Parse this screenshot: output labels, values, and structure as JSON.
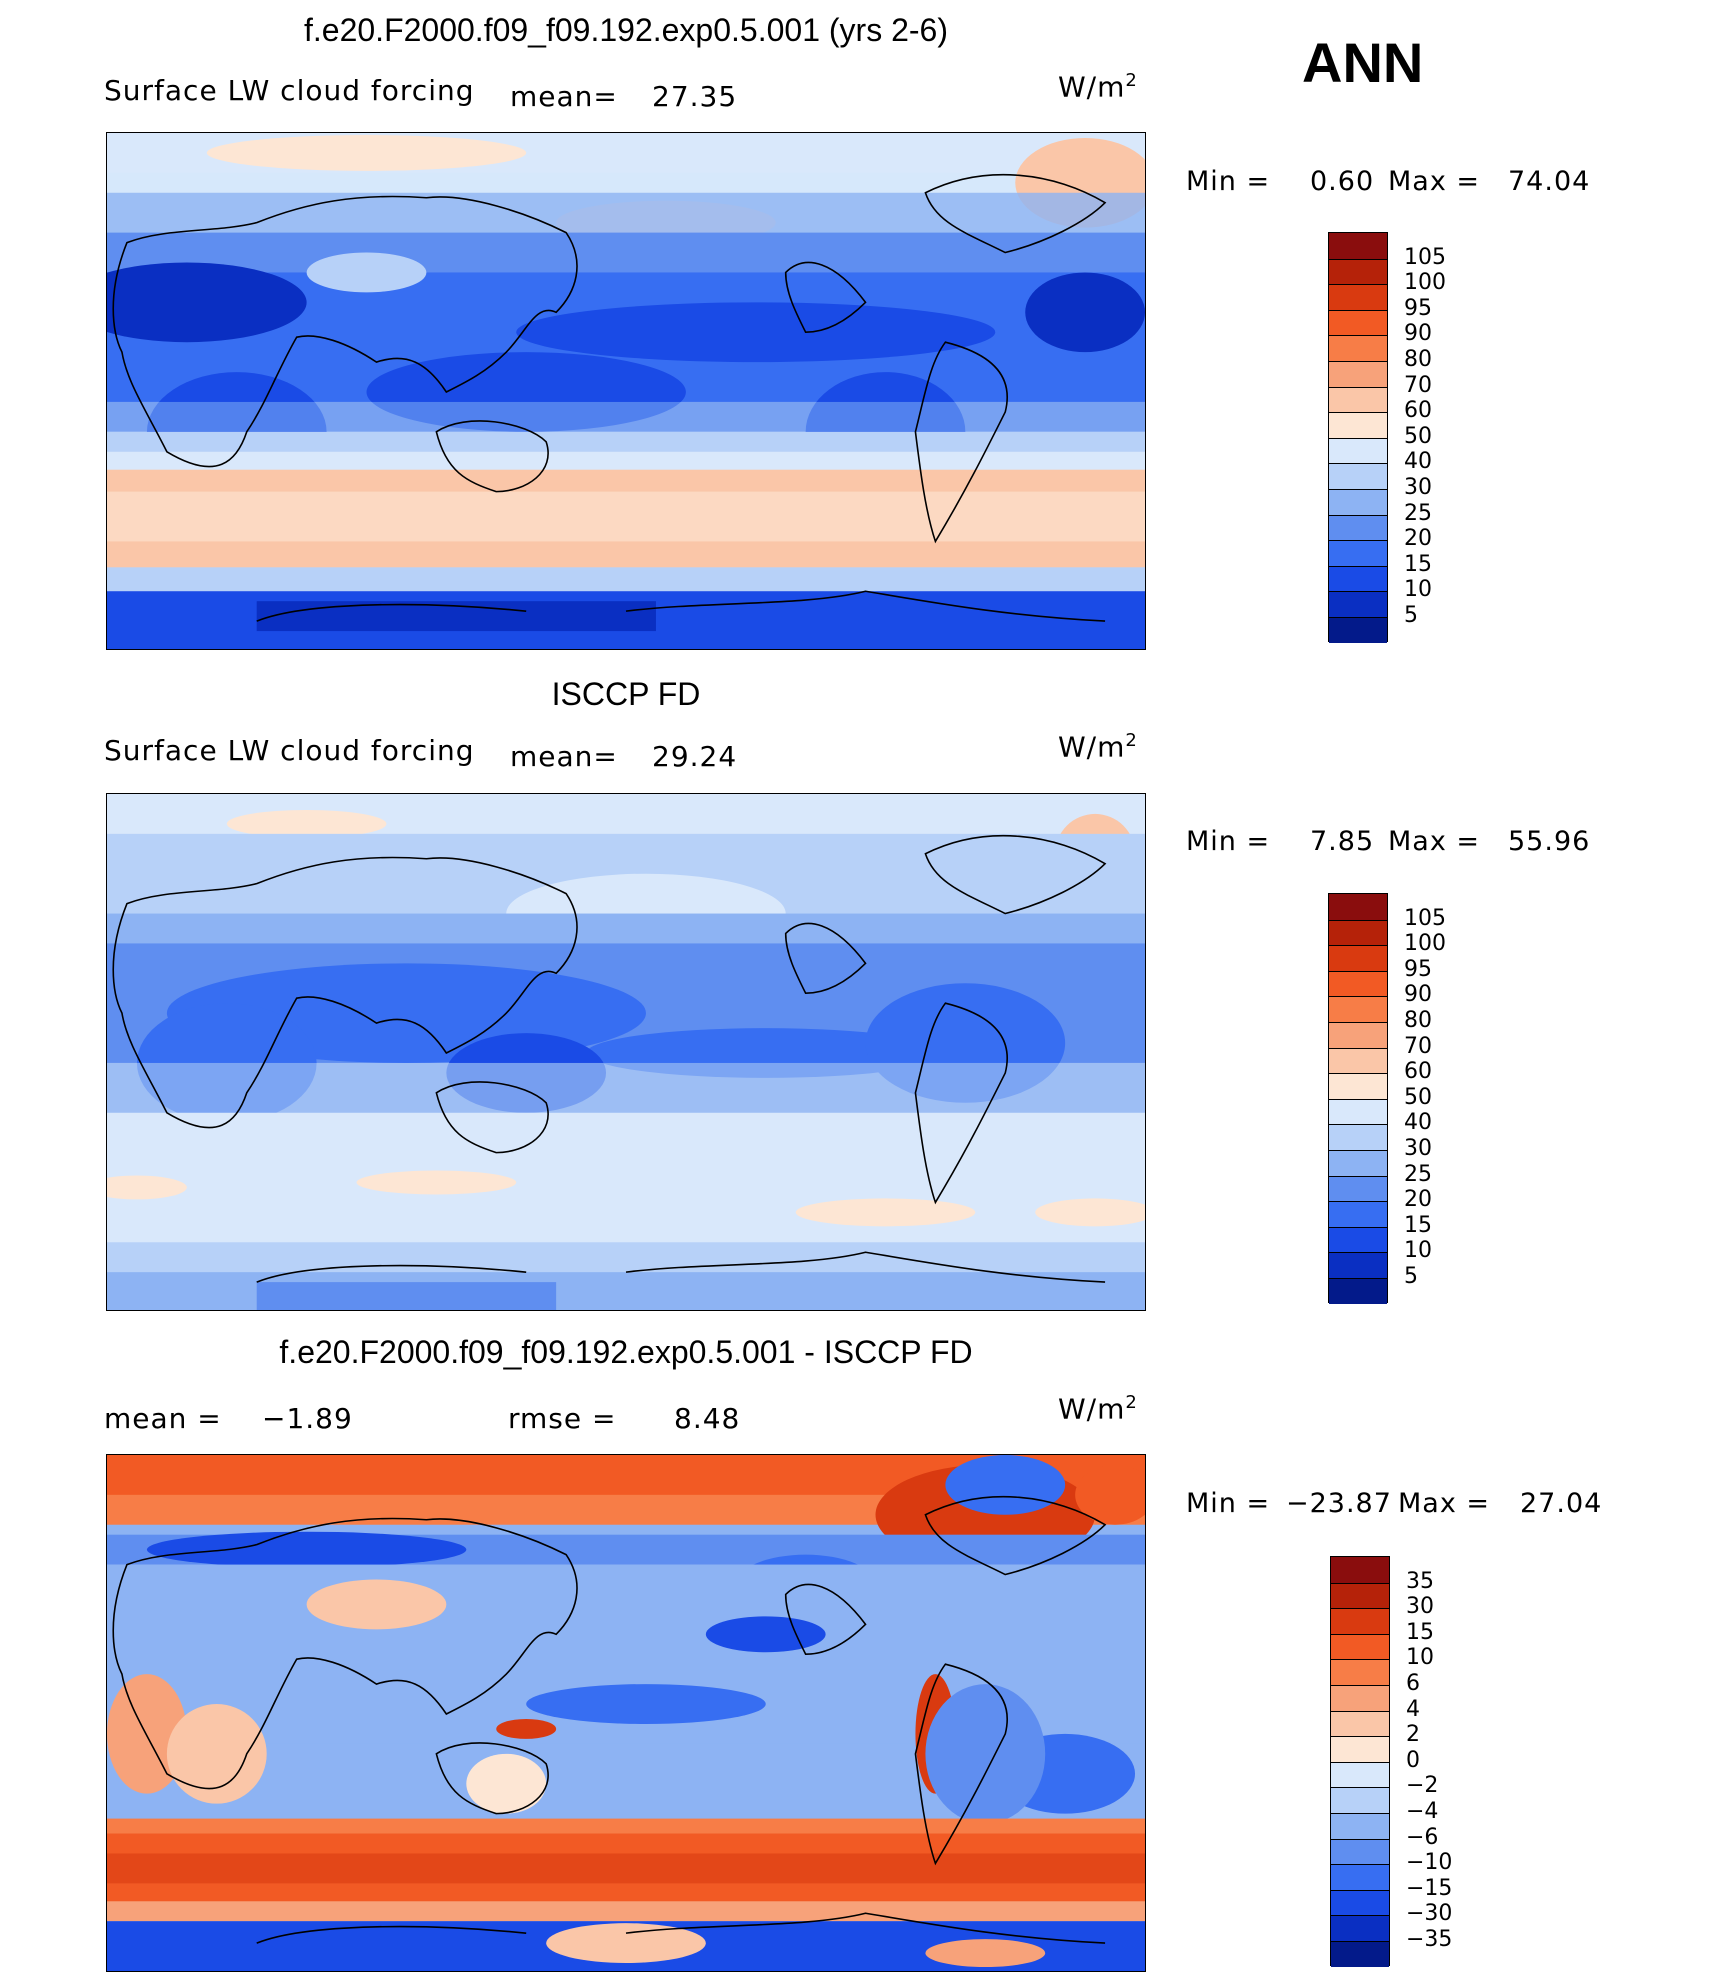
{
  "season": "ANN",
  "panels": [
    {
      "title": "f.e20.F2000.f09_f09.192.exp0.5.001 (yrs 2-6)",
      "left_label": "Surface LW cloud forcing",
      "mid_label": "mean=",
      "mid_value": "27.35",
      "units": "W/m",
      "units_sup": "2",
      "min_label": "Min =",
      "min_value": "0.60",
      "max_label": "Max =",
      "max_value": "74.04",
      "colorbar_levels": [
        "105",
        "100",
        "95",
        "90",
        "80",
        "70",
        "60",
        "50",
        "40",
        "30",
        "25",
        "20",
        "15",
        "10",
        "5"
      ],
      "colorbar_colors": [
        "#8a0d0d",
        "#b52209",
        "#d93a10",
        "#f25a24",
        "#f77d47",
        "#f7a27a",
        "#fac6a8",
        "#fde6d4",
        "#d9e8fb",
        "#b7d1f8",
        "#8db3f3",
        "#5f8ef0",
        "#376ef2",
        "#1a4be6",
        "#0a2fc2",
        "#031a8a"
      ]
    },
    {
      "title": "ISCCP FD",
      "left_label": "Surface LW cloud forcing",
      "mid_label": "mean=",
      "mid_value": "29.24",
      "units": "W/m",
      "units_sup": "2",
      "min_label": "Min =",
      "min_value": "7.85",
      "max_label": "Max =",
      "max_value": "55.96",
      "colorbar_levels": [
        "105",
        "100",
        "95",
        "90",
        "80",
        "70",
        "60",
        "50",
        "40",
        "30",
        "25",
        "20",
        "15",
        "10",
        "5"
      ],
      "colorbar_colors": [
        "#8a0d0d",
        "#b52209",
        "#d93a10",
        "#f25a24",
        "#f77d47",
        "#f7a27a",
        "#fac6a8",
        "#fde6d4",
        "#d9e8fb",
        "#b7d1f8",
        "#8db3f3",
        "#5f8ef0",
        "#376ef2",
        "#1a4be6",
        "#0a2fc2",
        "#031a8a"
      ]
    },
    {
      "title": "f.e20.F2000.f09_f09.192.exp0.5.001 - ISCCP FD",
      "left_label": "mean =",
      "left_value": "−1.89",
      "mid_label": "rmse =",
      "mid_value": "8.48",
      "units": "W/m",
      "units_sup": "2",
      "min_label": "Min =",
      "min_value": "−23.87",
      "max_label": "Max =",
      "max_value": "27.04",
      "colorbar_levels": [
        "35",
        "30",
        "15",
        "10",
        "6",
        "4",
        "2",
        "0",
        "−2",
        "−4",
        "−6",
        "−10",
        "−15",
        "−30",
        "−35"
      ],
      "colorbar_colors": [
        "#8a0d0d",
        "#b52209",
        "#d93a10",
        "#f25a24",
        "#f77d47",
        "#f7a27a",
        "#fac6a8",
        "#fde6d4",
        "#d9e8fb",
        "#b7d1f8",
        "#8db3f3",
        "#5f8ef0",
        "#376ef2",
        "#1a4be6",
        "#0a2fc2",
        "#031a8a"
      ]
    }
  ]
}
